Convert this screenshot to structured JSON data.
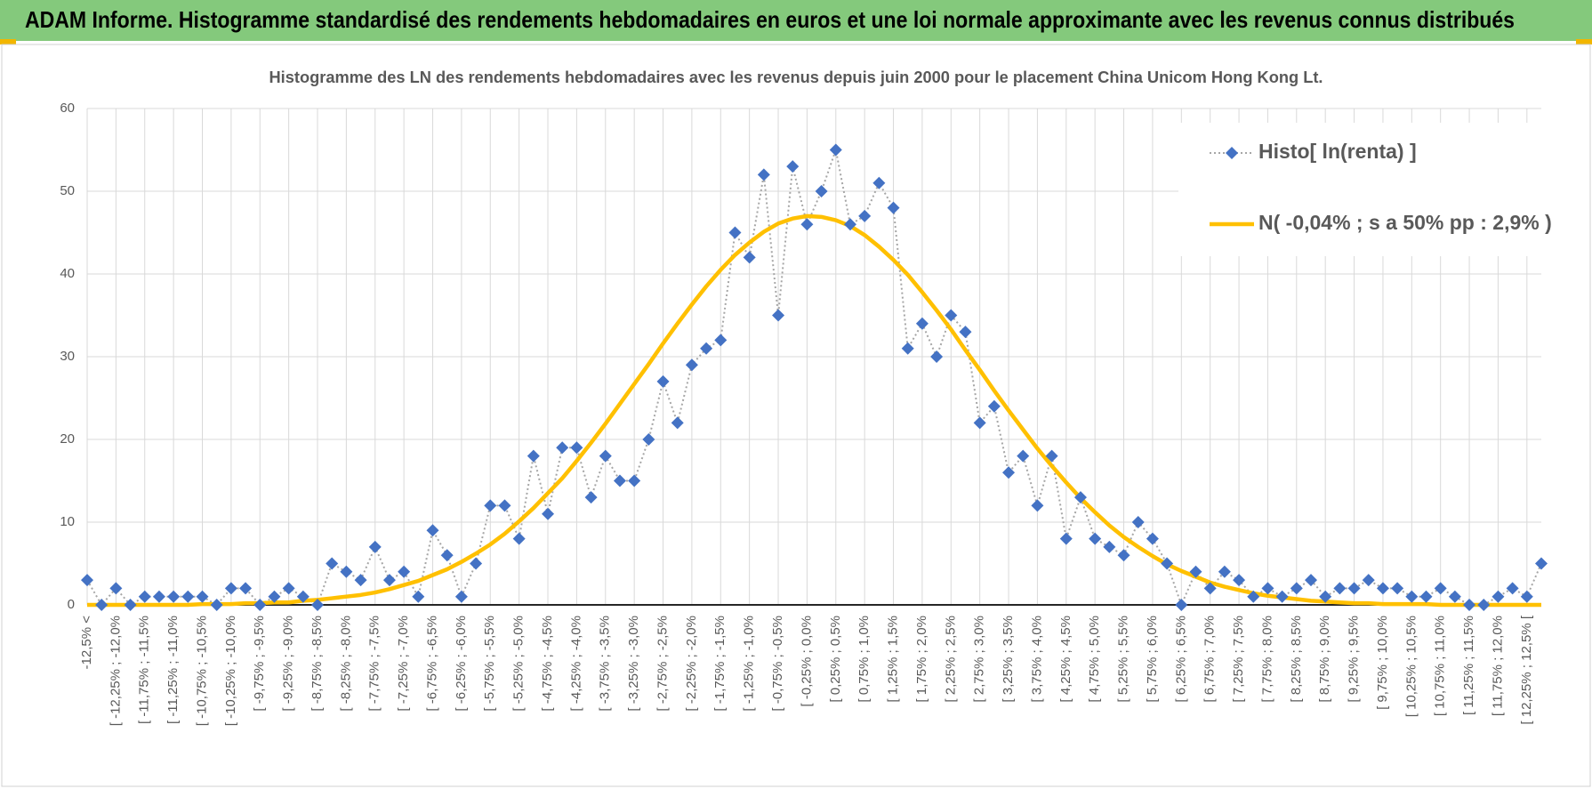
{
  "header": {
    "title": "ADAM Informe. Histogramme standardisé des rendements hebdomadaires en euros et une loi normale approximante avec les revenus connus distribués"
  },
  "chart_data": {
    "type": "line",
    "title": "Histogramme des LN des rendements hebdomadaires avec les revenus depuis juin 2000  pour le placement China Unicom Hong Kong Lt.",
    "categories": [
      "-12,5% <",
      null,
      "[ -12,25% ; -12,0%",
      null,
      "[ -11,75% ; -11,5%",
      null,
      "[ -11,25% ; -11,0%",
      null,
      "[ -10,75% ; -10,5%",
      null,
      "[ -10,25% ; -10,0%",
      null,
      "[ -9,75% ; -9,5%",
      null,
      "[ -9,25% ; -9,0%",
      null,
      "[ -8,75% ; -8,5%",
      null,
      "[ -8,25% ; -8,0%",
      null,
      "[ -7,75% ; -7,5%",
      null,
      "[ -7,25% ; -7,0%",
      null,
      "[ -6,75% ; -6,5%",
      null,
      "[ -6,25% ; -6,0%",
      null,
      "[ -5,75% ; -5,5%",
      null,
      "[ -5,25% ; -5,0%",
      null,
      "[ -4,75% ; -4,5%",
      null,
      "[ -4,25% ; -4,0%",
      null,
      "[ -3,75% ; -3,5%",
      null,
      "[ -3,25% ; -3,0%",
      null,
      "[ -2,75% ; -2,5%",
      null,
      "[ -2,25% ; -2,0%",
      null,
      "[ -1,75% ; -1,5%",
      null,
      "[ -1,25% ; -1,0%",
      null,
      "[ -0,75% ; -0,5%",
      null,
      "[ -0,25% ; 0,0%",
      null,
      "[ 0,25% ; 0,5%",
      null,
      "[ 0,75% ; 1,0%",
      null,
      "[ 1,25% ; 1,5%",
      null,
      "[ 1,75% ; 2,0%",
      null,
      "[ 2,25% ; 2,5%",
      null,
      "[ 2,75% ; 3,0%",
      null,
      "[ 3,25% ; 3,5%",
      null,
      "[ 3,75% ; 4,0%",
      null,
      "[ 4,25% ; 4,5%",
      null,
      "[ 4,75% ; 5,0%",
      null,
      "[ 5,25% ; 5,5%",
      null,
      "[ 5,75% ; 6,0%",
      null,
      "[ 6,25% ; 6,5%",
      null,
      "[ 6,75% ; 7,0%",
      null,
      "[ 7,25% ; 7,5%",
      null,
      "[ 7,75% ; 8,0%",
      null,
      "[ 8,25% ; 8,5%",
      null,
      "[ 8,75% ; 9,0%",
      null,
      "[ 9,25% ; 9,5%",
      null,
      "[ 9,75% ; 10,0%",
      null,
      "[ 10,25% ; 10,5%",
      null,
      "[ 10,75% ; 11,0%",
      null,
      "[ 11,25% ; 11,5%",
      null,
      "[ 11,75% ; 12,0%",
      null,
      "[ 12,25% ; 12,5% [",
      null
    ],
    "series": [
      {
        "name": "Histo[ ln(renta) ]",
        "color": "#4472c4",
        "line_color": "#a6a6a6",
        "values": [
          3,
          0,
          2,
          0,
          1,
          1,
          1,
          1,
          1,
          0,
          2,
          2,
          0,
          1,
          2,
          1,
          0,
          5,
          4,
          3,
          7,
          3,
          4,
          1,
          9,
          6,
          1,
          5,
          12,
          12,
          8,
          18,
          11,
          19,
          19,
          13,
          18,
          15,
          15,
          20,
          27,
          22,
          29,
          31,
          32,
          45,
          42,
          52,
          35,
          53,
          46,
          50,
          55,
          46,
          47,
          51,
          48,
          31,
          34,
          30,
          35,
          33,
          22,
          24,
          16,
          18,
          12,
          18,
          8,
          13,
          8,
          7,
          6,
          10,
          8,
          5,
          0,
          4,
          2,
          4,
          3,
          1,
          2,
          1,
          2,
          3,
          1,
          2,
          2,
          3,
          2,
          2,
          1,
          1,
          2,
          1,
          0,
          0,
          1,
          2,
          1,
          5
        ]
      },
      {
        "name": "N( -0,04% ; s a 50% pp : 2,9% )",
        "color": "#ffc000",
        "values": [
          0,
          0,
          0,
          0,
          0,
          0,
          0,
          0,
          0.1,
          0.1,
          0.1,
          0.2,
          0.2,
          0.3,
          0.3,
          0.5,
          0.6,
          0.8,
          1.0,
          1.2,
          1.5,
          1.9,
          2.4,
          2.9,
          3.6,
          4.3,
          5.2,
          6.2,
          7.3,
          8.6,
          10.1,
          11.7,
          13.5,
          15.3,
          17.4,
          19.6,
          21.9,
          24.3,
          26.7,
          29.1,
          31.6,
          34.0,
          36.3,
          38.5,
          40.5,
          42.3,
          43.8,
          45.1,
          46.1,
          46.7,
          47.0,
          46.9,
          46.5,
          45.8,
          44.7,
          43.3,
          41.7,
          39.9,
          37.8,
          35.6,
          33.3,
          30.8,
          28.4,
          25.9,
          23.5,
          21.2,
          18.9,
          16.8,
          14.8,
          12.9,
          11.2,
          9.6,
          8.2,
          7.0,
          5.9,
          4.9,
          4.1,
          3.4,
          2.7,
          2.2,
          1.8,
          1.4,
          1.1,
          0.9,
          0.7,
          0.5,
          0.4,
          0.3,
          0.2,
          0.2,
          0.1,
          0.1,
          0.1,
          0.1,
          0,
          0,
          0,
          0,
          0,
          0,
          0,
          0
        ]
      }
    ],
    "ylim": [
      0,
      60
    ],
    "yticks": [
      0,
      10,
      20,
      30,
      40,
      50,
      60
    ],
    "grid": true,
    "legend": "top-right"
  }
}
